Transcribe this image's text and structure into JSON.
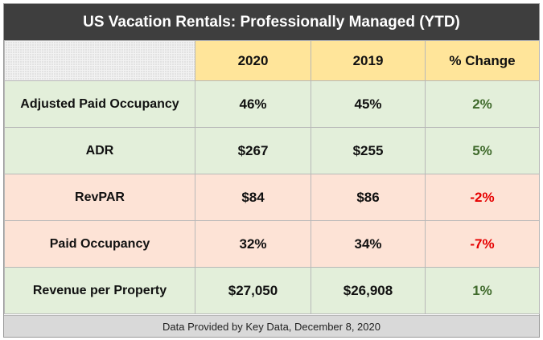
{
  "chart_data": {
    "type": "table",
    "title": "US Vacation Rentals: Professionally Managed (YTD)",
    "columns": [
      "",
      "2020",
      "2019",
      "% Change"
    ],
    "rows": [
      {
        "metric": "Adjusted Paid Occupancy",
        "v2020": "46%",
        "v2019": "45%",
        "change": "2%",
        "direction": "positive",
        "fill": "green"
      },
      {
        "metric": "ADR",
        "v2020": "$267",
        "v2019": "$255",
        "change": "5%",
        "direction": "positive",
        "fill": "green"
      },
      {
        "metric": "RevPAR",
        "v2020": "$84",
        "v2019": "$86",
        "change": "-2%",
        "direction": "negative",
        "fill": "pink"
      },
      {
        "metric": "Paid Occupancy",
        "v2020": "32%",
        "v2019": "34%",
        "change": "-7%",
        "direction": "negative",
        "fill": "pink"
      },
      {
        "metric": "Revenue per Property",
        "v2020": "$27,050",
        "v2019": "$26,908",
        "change": "1%",
        "direction": "positive",
        "fill": "green"
      }
    ],
    "source_note": "Data Provided by Key Data, December 8, 2020"
  },
  "colors": {
    "title_bg": "#3e3e3e",
    "header_bg": "#ffe59a",
    "green_row_bg": "#e3efda",
    "pink_row_bg": "#fde3d6",
    "positive_text": "#3f6a2b",
    "negative_text": "#e60000",
    "footer_bg": "#d9d9d9"
  }
}
